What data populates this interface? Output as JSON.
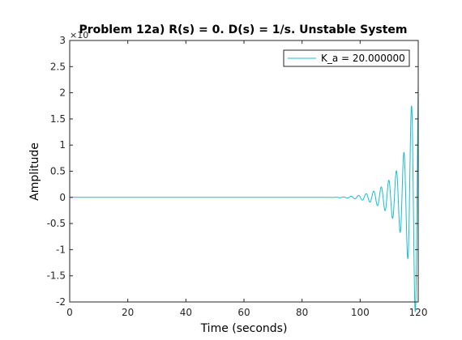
{
  "chart_data": {
    "type": "line",
    "title": "Problem 12a) R(s) = 0. D(s) = 1/s. Unstable System",
    "xlabel": "Time (seconds)",
    "ylabel": "Amplitude",
    "xlim": [
      0,
      120
    ],
    "ylim": [
      -2,
      3
    ],
    "y_exponent_label": "×10",
    "x_ticks": [
      "0",
      "20",
      "40",
      "60",
      "80",
      "100",
      "120"
    ],
    "y_ticks": [
      "-2",
      "-1.5",
      "-1",
      "-0.5",
      "0",
      "0.5",
      "1",
      "1.5",
      "2",
      "2.5",
      "3"
    ],
    "grid": false,
    "legend_position": "top-right",
    "series": [
      {
        "name": "K_a = 20.000000",
        "color": "#17becf",
        "envelope_t": [
          0,
          90,
          95,
          100,
          104,
          108,
          112,
          114,
          116,
          118,
          119,
          120
        ],
        "envelope_amp": [
          0,
          0,
          0.01,
          0.04,
          0.1,
          0.22,
          0.45,
          0.7,
          1.0,
          1.9,
          2.2,
          2.65
        ],
        "oscillation_period": 2.6
      }
    ]
  }
}
